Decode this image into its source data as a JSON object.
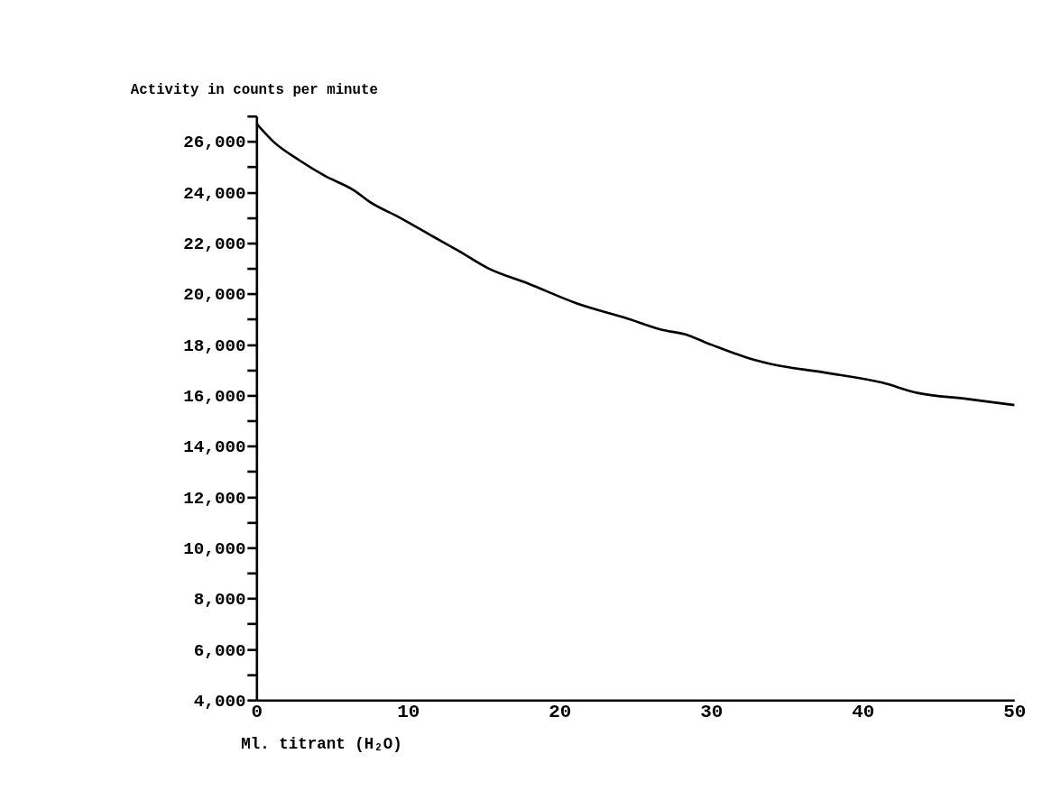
{
  "chart_data": {
    "type": "line",
    "ylabel": "Activity in counts per minute",
    "xlabel": "Ml. titrant (H₂O)",
    "x": [
      0,
      1.1,
      2.85,
      4.5,
      6.5,
      7.4,
      9.4,
      11.7,
      13.3,
      15.3,
      17.9,
      21.1,
      24.4,
      26.7,
      28.3,
      30.0,
      32.9,
      33.9,
      37.5,
      41.3,
      43.6,
      46.9,
      50.0
    ],
    "series": [
      {
        "color": "#000000",
        "values": [
          26700,
          26000,
          25250,
          24650,
          24050,
          23650,
          23020,
          22240,
          21700,
          21000,
          20410,
          19630,
          19040,
          18590,
          18400,
          18000,
          17390,
          17240,
          16900,
          16500,
          16100,
          15860,
          15620
        ]
      }
    ],
    "xlim": [
      0,
      50
    ],
    "xticks": [
      0,
      10,
      20,
      30,
      40,
      50
    ],
    "ylim": [
      4000,
      27000
    ],
    "yticks": [
      {
        "value": 4000,
        "label": "4,000"
      },
      {
        "value": 5000,
        "label": null
      },
      {
        "value": 6000,
        "label": "6,000"
      },
      {
        "value": 7000,
        "label": null
      },
      {
        "value": 8000,
        "label": "8,000"
      },
      {
        "value": 9000,
        "label": null
      },
      {
        "value": 10000,
        "label": "10,000"
      },
      {
        "value": 11000,
        "label": null
      },
      {
        "value": 12000,
        "label": "12,000"
      },
      {
        "value": 13000,
        "label": null
      },
      {
        "value": 14000,
        "label": "14,000"
      },
      {
        "value": 15000,
        "label": null
      },
      {
        "value": 16000,
        "label": "16,000"
      },
      {
        "value": 17000,
        "label": null
      },
      {
        "value": 18000,
        "label": "18,000"
      },
      {
        "value": 19000,
        "label": null
      },
      {
        "value": 20000,
        "label": "20,000"
      },
      {
        "value": 21000,
        "label": null
      },
      {
        "value": 22000,
        "label": "22,000"
      },
      {
        "value": 23000,
        "label": null
      },
      {
        "value": 24000,
        "label": "24,000"
      },
      {
        "value": 25000,
        "label": null
      },
      {
        "value": 26000,
        "label": "26,000"
      },
      {
        "value": 27000,
        "label": null
      }
    ],
    "grid": false,
    "legend": false,
    "marker": "none",
    "line_style": "solid"
  }
}
